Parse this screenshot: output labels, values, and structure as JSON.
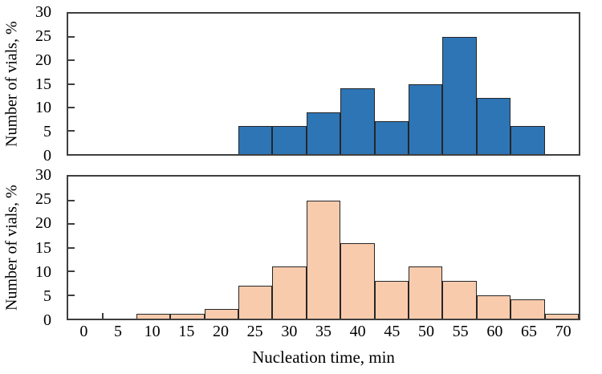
{
  "figure": {
    "background": "#ffffff",
    "frame_color": "#3f3f3f",
    "text_color": "#000000",
    "xlabel": "Nucleation time, min"
  },
  "chart_data": [
    {
      "type": "bar",
      "name": "top-histogram",
      "title": "",
      "ylabel": "Number of vials, %",
      "xlabel": "",
      "bar_color": "#2e75b6",
      "bar_edge_color": "#262626",
      "bin_width": 5,
      "x_range": [
        -2.5,
        72.5
      ],
      "ylim": [
        0,
        30
      ],
      "yticks": [
        0,
        5,
        10,
        15,
        20,
        25,
        30
      ],
      "grid": "off",
      "legend": "none",
      "categories": [
        25,
        30,
        35,
        40,
        45,
        50,
        55,
        60,
        65
      ],
      "values": [
        6,
        6,
        9,
        14,
        7,
        15,
        25,
        12,
        6
      ]
    },
    {
      "type": "bar",
      "name": "bottom-histogram",
      "title": "",
      "ylabel": "Number of vials, %",
      "xlabel": "Nucleation time, min",
      "bar_color": "#f8cbad",
      "bar_edge_color": "#262626",
      "bin_width": 5,
      "x_range": [
        -2.5,
        72.5
      ],
      "ylim": [
        0,
        30
      ],
      "yticks": [
        0,
        5,
        10,
        15,
        20,
        25,
        30
      ],
      "xticks": [
        0,
        5,
        10,
        15,
        20,
        25,
        30,
        35,
        40,
        45,
        50,
        55,
        60,
        65,
        70
      ],
      "minor_tick_x": 2.5,
      "grid": "off",
      "legend": "none",
      "categories": [
        10,
        15,
        20,
        25,
        30,
        35,
        40,
        45,
        50,
        55,
        60,
        65,
        70
      ],
      "values": [
        1,
        1,
        2,
        7,
        11,
        25,
        16,
        8,
        11,
        8,
        5,
        4,
        1
      ]
    }
  ]
}
